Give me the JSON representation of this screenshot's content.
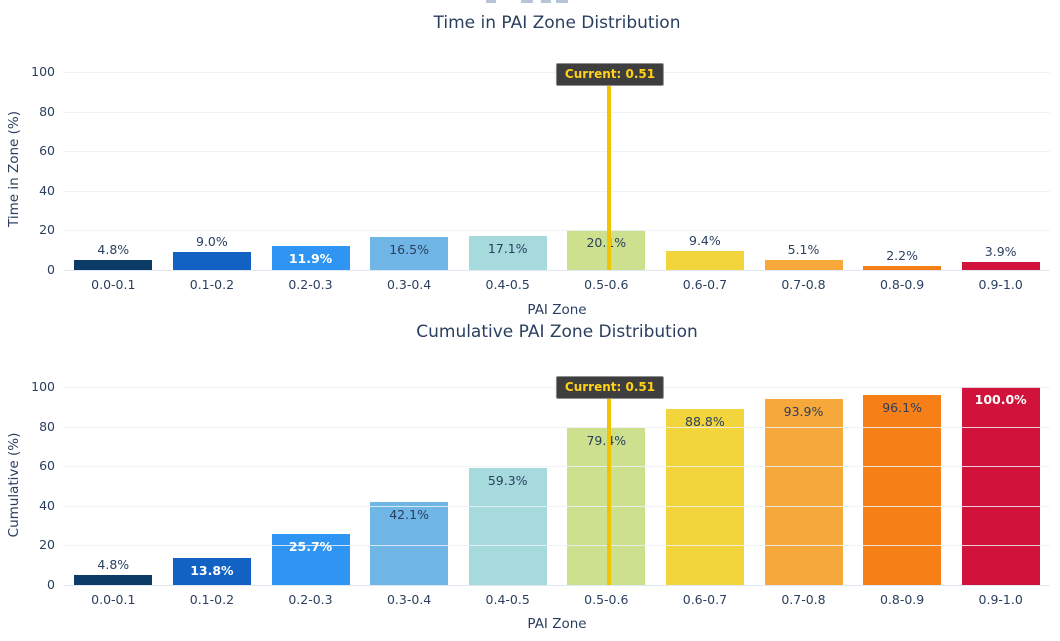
{
  "figure": {
    "background": "#ffffff",
    "text_color": "#2a3f5f",
    "clipped_suptitle_visible": true
  },
  "chart_data": [
    {
      "type": "bar",
      "title": "Time in PAI Zone Distribution",
      "xlabel": "PAI Zone",
      "ylabel": "Time in Zone (%)",
      "ylim": [
        0,
        100
      ],
      "yticks": [
        0,
        20,
        40,
        60,
        80,
        100
      ],
      "grid": true,
      "legend": false,
      "categories": [
        "0.0-0.1",
        "0.1-0.2",
        "0.2-0.3",
        "0.3-0.4",
        "0.4-0.5",
        "0.5-0.6",
        "0.6-0.7",
        "0.7-0.8",
        "0.8-0.9",
        "0.9-1.0"
      ],
      "values": [
        4.8,
        9.0,
        11.9,
        16.5,
        17.1,
        20.1,
        9.4,
        5.1,
        2.2,
        3.9
      ],
      "bar_labels": [
        "4.8%",
        "9.0%",
        "11.9%",
        "16.5%",
        "17.1%",
        "20.1%",
        "9.4%",
        "5.1%",
        "2.2%",
        "3.9%"
      ],
      "bar_colors": [
        "#0d3b68",
        "#1162c2",
        "#2e95f3",
        "#6fb6e6",
        "#a7dadd",
        "#cce08d",
        "#f2d43c",
        "#f6a83a",
        "#f67f17",
        "#d1123a"
      ],
      "label_styles": [
        "out",
        "out",
        "in-white",
        "in-dark",
        "in-dark",
        "in-dark",
        "out",
        "out",
        "out",
        "out"
      ],
      "annotation": {
        "text": "Current: 0.51",
        "x_value": 0.51,
        "line_color": "#f2c300",
        "box_bg": "#3e3e3e",
        "box_border": "#8f8f8f",
        "text_color": "#ffd215"
      }
    },
    {
      "type": "bar",
      "title": "Cumulative PAI Zone Distribution",
      "xlabel": "PAI Zone",
      "ylabel": "Cumulative (%)",
      "ylim": [
        0,
        100
      ],
      "yticks": [
        0,
        20,
        40,
        60,
        80,
        100
      ],
      "grid": true,
      "legend": false,
      "categories": [
        "0.0-0.1",
        "0.1-0.2",
        "0.2-0.3",
        "0.3-0.4",
        "0.4-0.5",
        "0.5-0.6",
        "0.6-0.7",
        "0.7-0.8",
        "0.8-0.9",
        "0.9-1.0"
      ],
      "values": [
        4.8,
        13.8,
        25.7,
        42.1,
        59.3,
        79.4,
        88.8,
        93.9,
        96.1,
        100.0
      ],
      "bar_labels": [
        "4.8%",
        "13.8%",
        "25.7%",
        "42.1%",
        "59.3%",
        "79.4%",
        "88.8%",
        "93.9%",
        "96.1%",
        "100.0%"
      ],
      "bar_colors": [
        "#0d3b68",
        "#1162c2",
        "#2e95f3",
        "#6fb6e6",
        "#a7dadd",
        "#cce08d",
        "#f2d43c",
        "#f6a83a",
        "#f67f17",
        "#d1123a"
      ],
      "label_styles": [
        "out",
        "in-white",
        "in-white",
        "in-dark",
        "in-dark",
        "in-dark",
        "in-dark",
        "in-dark",
        "in-dark",
        "in-white"
      ],
      "annotation": {
        "text": "Current: 0.51",
        "x_value": 0.51,
        "line_color": "#f2c300",
        "box_bg": "#3e3e3e",
        "box_border": "#8f8f8f",
        "text_color": "#ffd215"
      }
    }
  ]
}
